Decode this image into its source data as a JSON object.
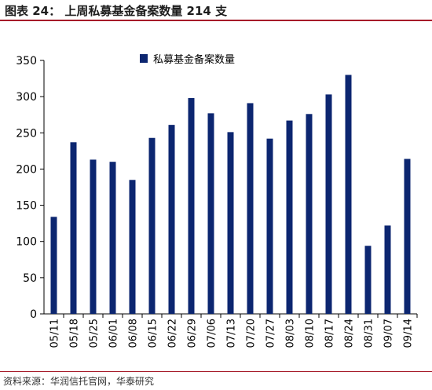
{
  "header": {
    "title": "图表 24： 上周私募基金备案数量 214 支"
  },
  "footer": {
    "source": "资料来源：华润信托官网，华泰研究"
  },
  "colors": {
    "bar": "#0c2670",
    "accent": "#a61b29"
  },
  "chart_data": {
    "type": "bar",
    "categories": [
      "05/11",
      "05/18",
      "05/25",
      "06/01",
      "06/08",
      "06/15",
      "06/22",
      "06/29",
      "07/06",
      "07/13",
      "07/20",
      "07/27",
      "08/03",
      "08/10",
      "08/17",
      "08/24",
      "08/31",
      "09/07",
      "09/14"
    ],
    "series": [
      {
        "name": "私募基金备案数量",
        "values": [
          134,
          237,
          213,
          210,
          185,
          243,
          261,
          298,
          277,
          251,
          291,
          242,
          267,
          276,
          303,
          330,
          94,
          122,
          214
        ]
      }
    ],
    "ylim": [
      0,
      350
    ],
    "yticks": [
      0,
      50,
      100,
      150,
      200,
      250,
      300,
      350
    ],
    "xlabel": "",
    "ylabel": "",
    "legend_position": "top-center",
    "grid": false
  }
}
